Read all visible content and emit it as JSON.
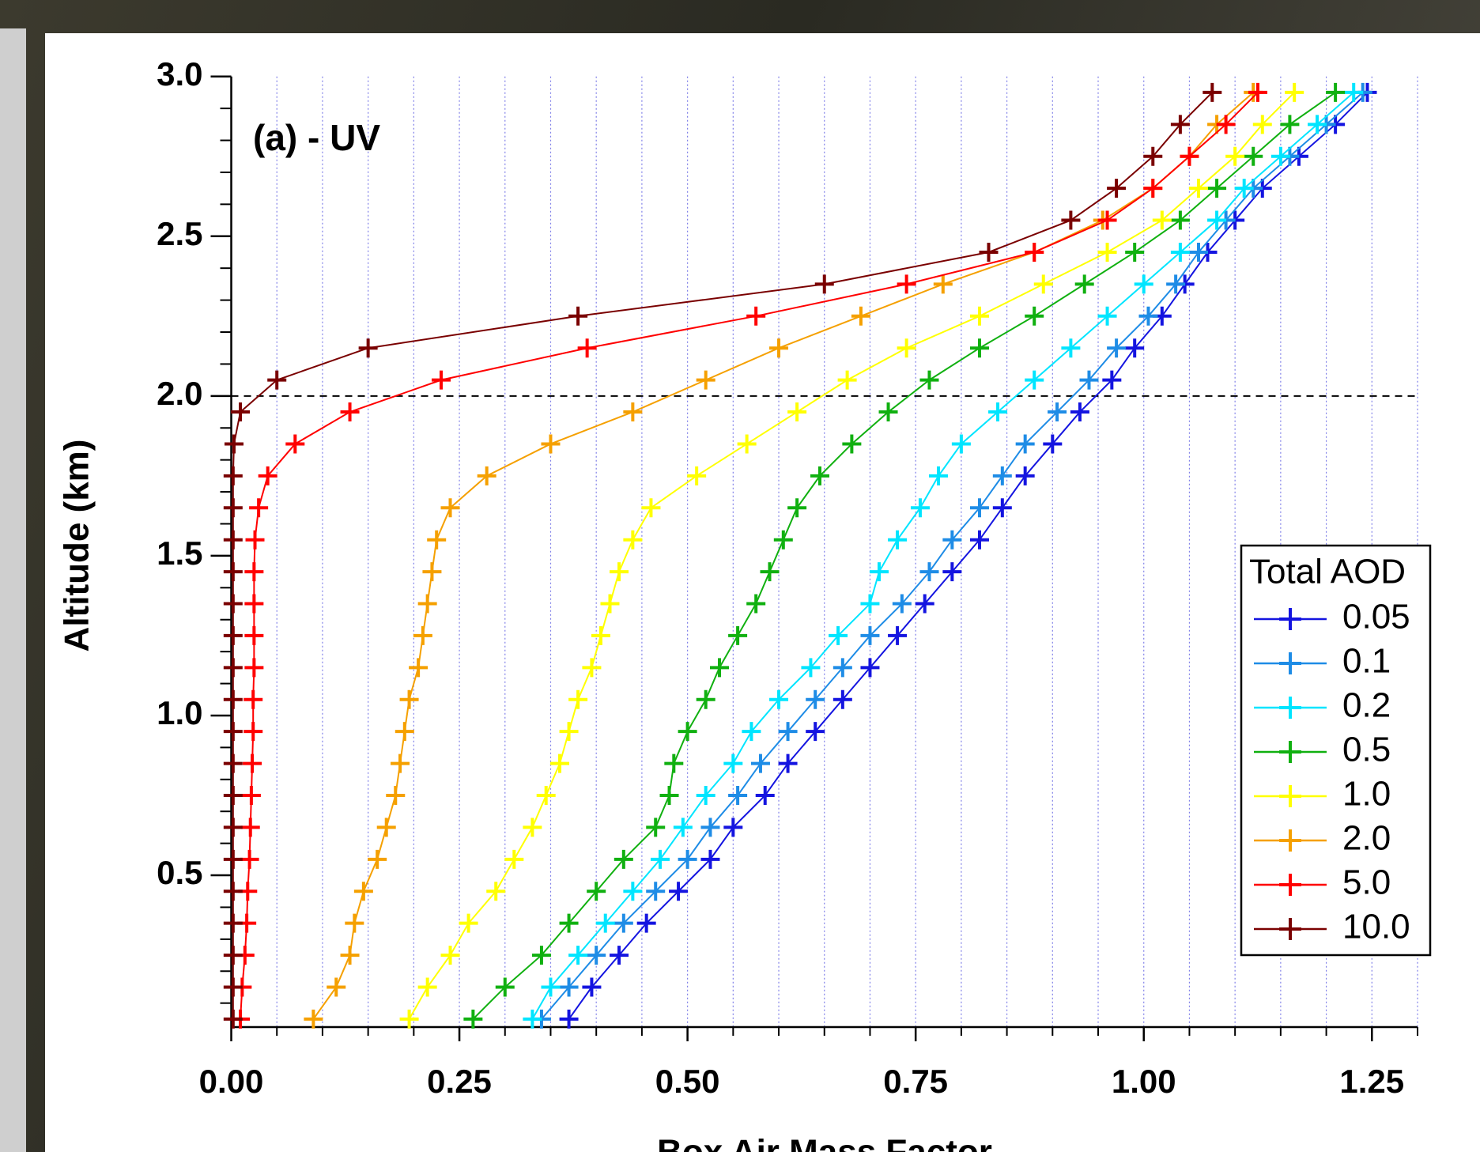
{
  "chart_data": {
    "type": "line",
    "annotation": "(a) - UV",
    "x_label": "Box Air Mass Factor",
    "y_label": "Altitude (km)",
    "legend_title": "Total AOD",
    "legend_position": "lower right",
    "xlim": [
      0,
      1.3
    ],
    "ylim": [
      0.025,
      3.0
    ],
    "xticks": [
      {
        "value": 0,
        "label": "0.00"
      },
      0.25,
      {
        "value": 0.5,
        "label": "0.50"
      },
      0.75,
      {
        "value": 1,
        "label": "1.00"
      },
      1.25
    ],
    "yticks": [
      0.5,
      {
        "value": 1,
        "label": "1.0"
      },
      1.5,
      {
        "value": 2,
        "label": "2.0"
      },
      2.5,
      {
        "value": 3,
        "label": "3.0"
      }
    ],
    "xminorticks": [
      0.05,
      0.1,
      0.15,
      0.2,
      0.3,
      0.35,
      0.4,
      0.45,
      0.55,
      0.6,
      0.65,
      0.7,
      0.8,
      0.85,
      0.9,
      0.95,
      1.05,
      1.1,
      1.15,
      1.2,
      1.3
    ],
    "yminorticks": [
      0.1,
      0.2,
      0.3,
      0.4,
      0.6,
      0.7,
      0.8,
      0.9,
      1.1,
      1.2,
      1.3,
      1.4,
      1.6,
      1.7,
      1.8,
      1.9,
      2.1,
      2.2,
      2.3,
      2.4,
      2.6,
      2.7,
      2.8,
      2.9
    ],
    "grid": true,
    "reference_line": 2.0,
    "y": [
      0.05,
      0.15,
      0.25,
      0.35,
      0.45,
      0.55,
      0.65,
      0.75,
      0.85,
      0.95,
      1.05,
      1.15,
      1.25,
      1.35,
      1.45,
      1.55,
      1.65,
      1.75,
      1.85,
      1.95,
      2.05,
      2.15,
      2.25,
      2.35,
      2.45,
      2.55,
      2.65,
      2.75,
      2.85,
      2.95
    ],
    "series": [
      {
        "name": "0.05",
        "color": "#1414e0",
        "values": [
          0.37,
          0.395,
          0.425,
          0.455,
          0.49,
          0.525,
          0.55,
          0.585,
          0.61,
          0.64,
          0.67,
          0.7,
          0.73,
          0.76,
          0.79,
          0.82,
          0.845,
          0.87,
          0.9,
          0.93,
          0.965,
          0.99,
          1.02,
          1.045,
          1.07,
          1.1,
          1.13,
          1.17,
          1.21,
          1.245
        ]
      },
      {
        "name": "0.1",
        "color": "#1e8ce6",
        "values": [
          0.34,
          0.37,
          0.4,
          0.43,
          0.465,
          0.5,
          0.525,
          0.555,
          0.58,
          0.61,
          0.64,
          0.67,
          0.7,
          0.735,
          0.765,
          0.79,
          0.82,
          0.845,
          0.87,
          0.905,
          0.94,
          0.97,
          1.005,
          1.035,
          1.06,
          1.09,
          1.12,
          1.16,
          1.2,
          1.24
        ]
      },
      {
        "name": "0.2",
        "color": "#00e5ff",
        "values": [
          0.33,
          0.35,
          0.38,
          0.41,
          0.44,
          0.47,
          0.495,
          0.52,
          0.55,
          0.57,
          0.6,
          0.635,
          0.665,
          0.7,
          0.71,
          0.73,
          0.755,
          0.775,
          0.8,
          0.84,
          0.88,
          0.92,
          0.96,
          1.0,
          1.04,
          1.08,
          1.11,
          1.15,
          1.19,
          1.23
        ]
      },
      {
        "name": "0.5",
        "color": "#10b010",
        "values": [
          0.265,
          0.3,
          0.34,
          0.37,
          0.4,
          0.43,
          0.465,
          0.48,
          0.485,
          0.5,
          0.52,
          0.535,
          0.555,
          0.575,
          0.59,
          0.605,
          0.62,
          0.645,
          0.68,
          0.72,
          0.765,
          0.82,
          0.88,
          0.935,
          0.99,
          1.04,
          1.08,
          1.12,
          1.16,
          1.21
        ]
      },
      {
        "name": "1.0",
        "color": "#ffff00",
        "values": [
          0.195,
          0.215,
          0.24,
          0.26,
          0.29,
          0.31,
          0.33,
          0.345,
          0.36,
          0.37,
          0.38,
          0.395,
          0.405,
          0.415,
          0.425,
          0.44,
          0.46,
          0.51,
          0.565,
          0.62,
          0.675,
          0.74,
          0.82,
          0.89,
          0.96,
          1.02,
          1.06,
          1.1,
          1.13,
          1.165
        ]
      },
      {
        "name": "2.0",
        "color": "#f5a000",
        "values": [
          0.09,
          0.115,
          0.13,
          0.135,
          0.145,
          0.16,
          0.17,
          0.18,
          0.185,
          0.19,
          0.195,
          0.205,
          0.21,
          0.215,
          0.22,
          0.225,
          0.24,
          0.28,
          0.35,
          0.44,
          0.52,
          0.6,
          0.69,
          0.78,
          0.88,
          0.955,
          1.01,
          1.05,
          1.08,
          1.12
        ]
      },
      {
        "name": "5.0",
        "color": "#ff0000",
        "values": [
          0.01,
          0.012,
          0.015,
          0.017,
          0.018,
          0.02,
          0.021,
          0.022,
          0.023,
          0.024,
          0.024,
          0.025,
          0.025,
          0.025,
          0.025,
          0.026,
          0.03,
          0.04,
          0.07,
          0.13,
          0.23,
          0.39,
          0.575,
          0.74,
          0.88,
          0.96,
          1.01,
          1.05,
          1.09,
          1.125
        ]
      },
      {
        "name": "10.0",
        "color": "#7a0000",
        "values": [
          0.002,
          0.002,
          0.002,
          0.002,
          0.002,
          0.002,
          0.002,
          0.002,
          0.002,
          0.002,
          0.002,
          0.002,
          0.002,
          0.002,
          0.002,
          0.002,
          0.002,
          0.002,
          0.003,
          0.01,
          0.05,
          0.15,
          0.38,
          0.65,
          0.83,
          0.92,
          0.97,
          1.01,
          1.04,
          1.075
        ]
      }
    ]
  }
}
